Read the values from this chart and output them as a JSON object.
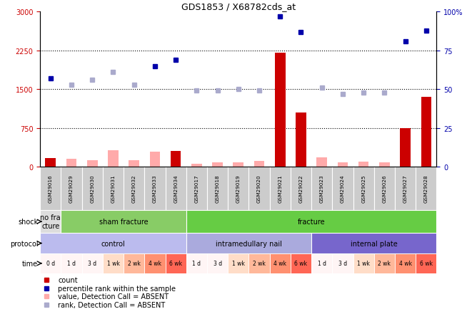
{
  "title": "GDS1853 / X68782cds_at",
  "samples": [
    "GSM29016",
    "GSM29029",
    "GSM29030",
    "GSM29031",
    "GSM29032",
    "GSM29033",
    "GSM29034",
    "GSM29017",
    "GSM29018",
    "GSM29019",
    "GSM29020",
    "GSM29021",
    "GSM29022",
    "GSM29023",
    "GSM29024",
    "GSM29025",
    "GSM29026",
    "GSM29027",
    "GSM29028"
  ],
  "count_values": [
    160,
    0,
    0,
    0,
    0,
    0,
    300,
    0,
    0,
    0,
    0,
    2200,
    1050,
    0,
    0,
    0,
    0,
    750,
    1350
  ],
  "count_absent": [
    false,
    true,
    true,
    true,
    true,
    true,
    false,
    true,
    true,
    true,
    true,
    false,
    false,
    true,
    true,
    true,
    true,
    false,
    false
  ],
  "count_absent_values": [
    0,
    150,
    120,
    310,
    120,
    290,
    0,
    60,
    75,
    85,
    110,
    0,
    0,
    175,
    75,
    90,
    80,
    0,
    0
  ],
  "rank_values": [
    57,
    53,
    56,
    61,
    53,
    65,
    69,
    49,
    49,
    50,
    49,
    97,
    87,
    51,
    47,
    48,
    48,
    81,
    88
  ],
  "rank_absent": [
    false,
    true,
    true,
    true,
    true,
    false,
    false,
    true,
    true,
    true,
    true,
    false,
    false,
    true,
    true,
    true,
    true,
    false,
    false
  ],
  "ylim_left": [
    0,
    3000
  ],
  "ylim_right": [
    0,
    100
  ],
  "yticks_left": [
    0,
    750,
    1500,
    2250,
    3000
  ],
  "yticks_right": [
    0,
    25,
    50,
    75,
    100
  ],
  "shock_groups": [
    {
      "label": "no fra\ncture",
      "start": 0,
      "end": 1,
      "color": "#dddddd"
    },
    {
      "label": "sham fracture",
      "start": 1,
      "end": 7,
      "color": "#88cc66"
    },
    {
      "label": "fracture",
      "start": 7,
      "end": 19,
      "color": "#66cc44"
    }
  ],
  "protocol_groups": [
    {
      "label": "control",
      "start": 0,
      "end": 7,
      "color": "#bbbbee"
    },
    {
      "label": "intramedullary nail",
      "start": 7,
      "end": 13,
      "color": "#aaaadd"
    },
    {
      "label": "internal plate",
      "start": 13,
      "end": 19,
      "color": "#7766cc"
    }
  ],
  "time_labels": [
    "0 d",
    "1 d",
    "3 d",
    "1 wk",
    "2 wk",
    "4 wk",
    "6 wk",
    "1 d",
    "3 d",
    "1 wk",
    "2 wk",
    "4 wk",
    "6 wk",
    "1 d",
    "3 d",
    "1 wk",
    "2 wk",
    "4 wk",
    "6 wk"
  ],
  "time_colors": [
    "#fff5f5",
    "#fff5f5",
    "#fff5f5",
    "#ffddc8",
    "#ffb89a",
    "#ff9070",
    "#ff6655",
    "#fff5f5",
    "#fff5f5",
    "#ffddc8",
    "#ffb89a",
    "#ff9070",
    "#ff6655",
    "#fff5f5",
    "#fff5f5",
    "#ffddc8",
    "#ffb89a",
    "#ff9070",
    "#ff6655"
  ],
  "color_red": "#cc0000",
  "color_pink": "#ffaaaa",
  "color_blue": "#0000aa",
  "color_lightblue": "#aaaacc",
  "bg_color": "#ffffff",
  "label_area_color": "#dddddd",
  "xlabel_color": "#cc0000",
  "ylabel_right_color": "#0000aa"
}
